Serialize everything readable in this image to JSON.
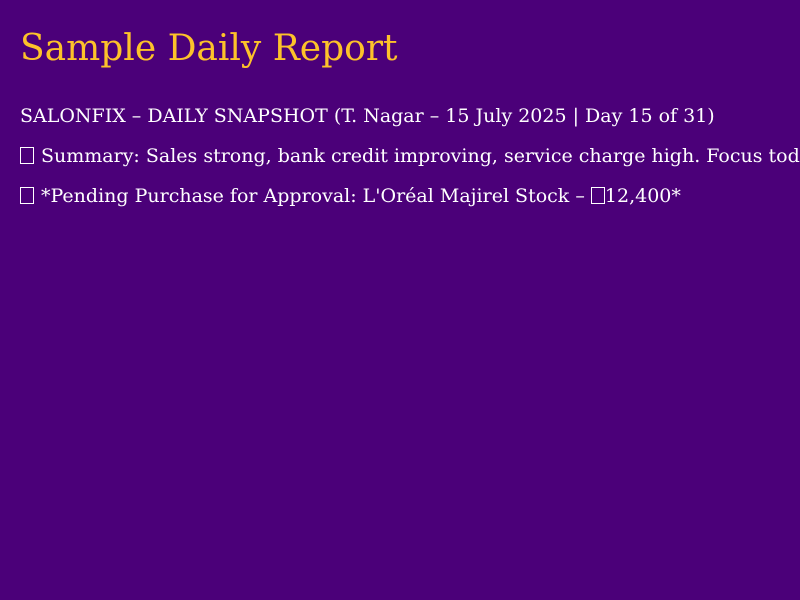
{
  "report": {
    "title": "Sample Daily Report",
    "header_line": "SALONFIX – DAILY SNAPSHOT (T. Nagar – 15 July 2025 | Day 15 of 31)",
    "summary_line": "Summary: Sales strong, bank credit improving, service charge high. Focus tod",
    "pending_line_before_value": "*Pending Purchase for Approval: L'Oréal Majirel Stock – ",
    "pending_value": "12,400*",
    "missing_glyph_icon": "missing-glyph-box",
    "colors": {
      "background": "#4b0079",
      "title": "#fdc22a",
      "text": "#ffffff"
    }
  }
}
